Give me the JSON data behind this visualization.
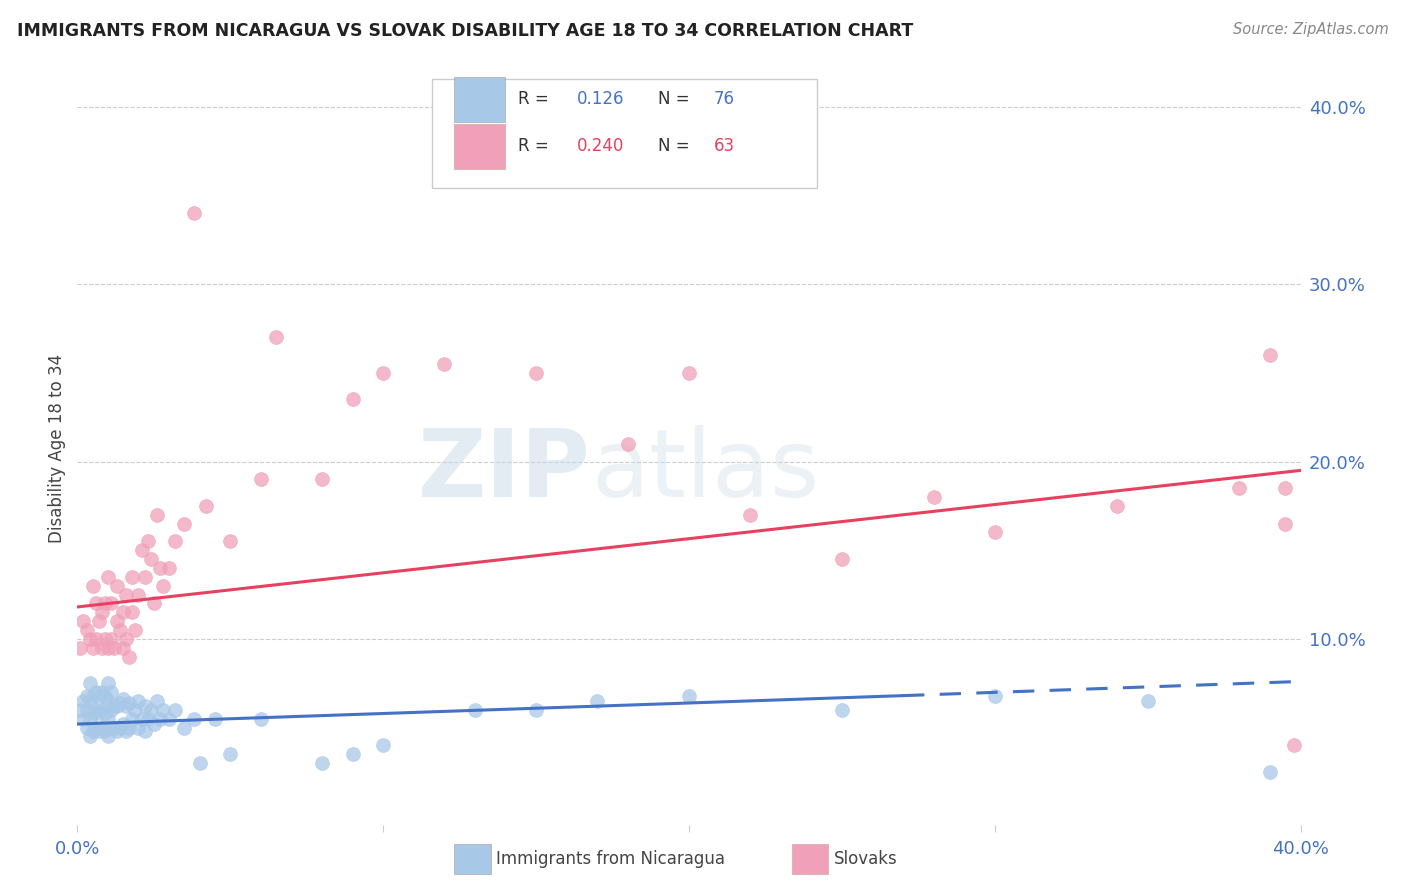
{
  "title": "IMMIGRANTS FROM NICARAGUA VS SLOVAK DISABILITY AGE 18 TO 34 CORRELATION CHART",
  "source": "Source: ZipAtlas.com",
  "ylabel": "Disability Age 18 to 34",
  "xlim": [
    0.0,
    0.4
  ],
  "ylim": [
    -0.005,
    0.42
  ],
  "yticks": [
    0.0,
    0.1,
    0.2,
    0.3,
    0.4
  ],
  "ytick_labels": [
    "",
    "10.0%",
    "20.0%",
    "30.0%",
    "40.0%"
  ],
  "legend_nicaragua_R": "0.126",
  "legend_nicaragua_N": "76",
  "legend_slovak_R": "0.240",
  "legend_slovak_N": "63",
  "color_nicaragua": "#a8c8e8",
  "color_slovak": "#f0a0b8",
  "line_color_nicaragua": "#4472c4",
  "line_color_slovak": "#e8406080",
  "line_color_slovak_solid": "#e84060",
  "watermark_zip": "ZIP",
  "watermark_atlas": "atlas",
  "nicaragua_x": [
    0.001,
    0.002,
    0.002,
    0.003,
    0.003,
    0.003,
    0.004,
    0.004,
    0.004,
    0.004,
    0.005,
    0.005,
    0.005,
    0.006,
    0.006,
    0.006,
    0.007,
    0.007,
    0.007,
    0.008,
    0.008,
    0.008,
    0.009,
    0.009,
    0.009,
    0.01,
    0.01,
    0.01,
    0.01,
    0.011,
    0.011,
    0.011,
    0.012,
    0.012,
    0.013,
    0.013,
    0.014,
    0.014,
    0.015,
    0.015,
    0.016,
    0.016,
    0.017,
    0.017,
    0.018,
    0.019,
    0.02,
    0.02,
    0.021,
    0.022,
    0.022,
    0.023,
    0.024,
    0.025,
    0.026,
    0.027,
    0.028,
    0.03,
    0.032,
    0.035,
    0.038,
    0.04,
    0.045,
    0.05,
    0.06,
    0.08,
    0.09,
    0.1,
    0.13,
    0.15,
    0.17,
    0.2,
    0.25,
    0.3,
    0.35,
    0.39
  ],
  "nicaragua_y": [
    0.06,
    0.055,
    0.065,
    0.05,
    0.06,
    0.068,
    0.045,
    0.055,
    0.065,
    0.075,
    0.048,
    0.058,
    0.068,
    0.05,
    0.06,
    0.07,
    0.048,
    0.058,
    0.068,
    0.05,
    0.06,
    0.07,
    0.048,
    0.058,
    0.068,
    0.045,
    0.055,
    0.065,
    0.075,
    0.05,
    0.06,
    0.07,
    0.05,
    0.062,
    0.048,
    0.062,
    0.05,
    0.064,
    0.052,
    0.066,
    0.048,
    0.062,
    0.05,
    0.064,
    0.055,
    0.06,
    0.05,
    0.065,
    0.055,
    0.048,
    0.062,
    0.055,
    0.06,
    0.052,
    0.065,
    0.055,
    0.06,
    0.055,
    0.06,
    0.05,
    0.055,
    0.03,
    0.055,
    0.035,
    0.055,
    0.03,
    0.035,
    0.04,
    0.06,
    0.06,
    0.065,
    0.068,
    0.06,
    0.068,
    0.065,
    0.025
  ],
  "slovak_x": [
    0.001,
    0.002,
    0.003,
    0.004,
    0.005,
    0.005,
    0.006,
    0.006,
    0.007,
    0.008,
    0.008,
    0.009,
    0.009,
    0.01,
    0.01,
    0.011,
    0.011,
    0.012,
    0.013,
    0.013,
    0.014,
    0.015,
    0.015,
    0.016,
    0.016,
    0.017,
    0.018,
    0.018,
    0.019,
    0.02,
    0.021,
    0.022,
    0.023,
    0.024,
    0.025,
    0.026,
    0.027,
    0.028,
    0.03,
    0.032,
    0.035,
    0.038,
    0.042,
    0.05,
    0.06,
    0.065,
    0.08,
    0.09,
    0.1,
    0.12,
    0.15,
    0.18,
    0.2,
    0.22,
    0.25,
    0.28,
    0.3,
    0.34,
    0.38,
    0.39,
    0.395,
    0.395,
    0.398
  ],
  "slovak_y": [
    0.095,
    0.11,
    0.105,
    0.1,
    0.095,
    0.13,
    0.1,
    0.12,
    0.11,
    0.095,
    0.115,
    0.1,
    0.12,
    0.095,
    0.135,
    0.1,
    0.12,
    0.095,
    0.11,
    0.13,
    0.105,
    0.095,
    0.115,
    0.1,
    0.125,
    0.09,
    0.115,
    0.135,
    0.105,
    0.125,
    0.15,
    0.135,
    0.155,
    0.145,
    0.12,
    0.17,
    0.14,
    0.13,
    0.14,
    0.155,
    0.165,
    0.34,
    0.175,
    0.155,
    0.19,
    0.27,
    0.19,
    0.235,
    0.25,
    0.255,
    0.25,
    0.21,
    0.25,
    0.17,
    0.145,
    0.18,
    0.16,
    0.175,
    0.185,
    0.26,
    0.165,
    0.185,
    0.04
  ],
  "nic_line_start_x": 0.0,
  "nic_line_solid_end_x": 0.27,
  "nic_line_end_x": 0.4,
  "nic_line_y0": 0.052,
  "nic_line_y_solid_end": 0.068,
  "nic_line_y_end": 0.076,
  "slo_line_start_x": 0.0,
  "slo_line_end_x": 0.4,
  "slo_line_y0": 0.118,
  "slo_line_y_end": 0.195
}
